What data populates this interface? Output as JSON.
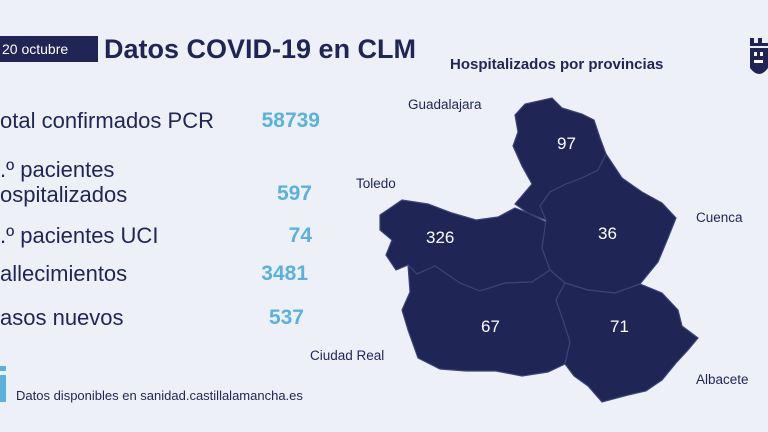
{
  "header": {
    "date": "20 octubre",
    "title": "Datos COVID-19 en CLM",
    "map_title": "Hospitalizados por provincias"
  },
  "stats": [
    {
      "label": "otal confirmados PCR",
      "value": "58739"
    },
    {
      "label_line1": ".º pacientes",
      "label_line2": "ospitalizados",
      "value": "597"
    },
    {
      "label": ".º pacientes UCI",
      "value": "74"
    },
    {
      "label": "allecimientos",
      "value": "3481"
    },
    {
      "label": "asos nuevos",
      "value": "537"
    }
  ],
  "footer": {
    "text": "Datos disponibles en sanidad.castillalamancha.es",
    "icon": "info-icon"
  },
  "map": {
    "fill_color": "#1f2554",
    "border_color": "#3a4478",
    "value_color": "#ffffff",
    "provinces": [
      {
        "name": "Guadalajara",
        "hospitalized": "97"
      },
      {
        "name": "Toledo",
        "hospitalized": "326"
      },
      {
        "name": "Cuenca",
        "hospitalized": "36"
      },
      {
        "name": "Ciudad Real",
        "hospitalized": "67"
      },
      {
        "name": "Albacete",
        "hospitalized": "71"
      }
    ]
  },
  "colors": {
    "background": "#eef0f8",
    "primary": "#1f2554",
    "accent": "#5ab2dc"
  }
}
